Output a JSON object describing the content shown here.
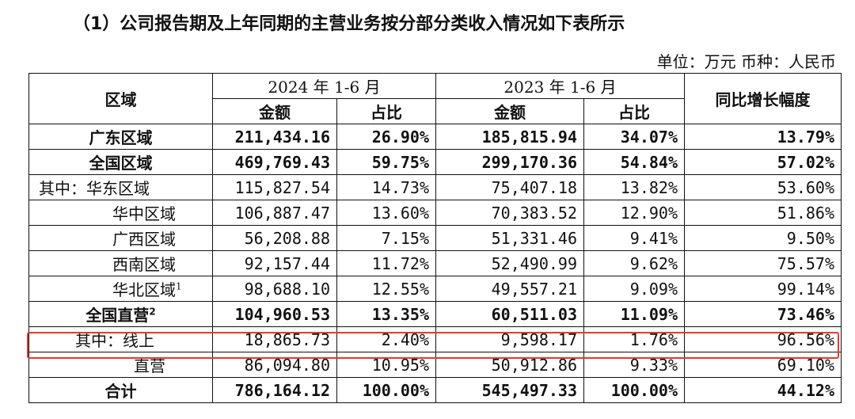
{
  "heading": "（1）公司报告期及上年同期的主营业务按分部分类收入情况如下表所示",
  "unit_note": "单位：万元  币种：人民币",
  "headers": {
    "region": "区域",
    "period_2024": "2024 年 1-6 月",
    "period_2023": "2023 年 1-6 月",
    "amount": "金额",
    "share": "占比",
    "growth": "同比增长幅度"
  },
  "rows": [
    {
      "region": "广东区域",
      "note": "",
      "amt_2024": "211,434.16",
      "pct_2024": "26.90%",
      "amt_2023": "185,815.94",
      "pct_2023": "34.07%",
      "growth": "13.79%"
    },
    {
      "region": "全国区域",
      "note": "",
      "amt_2024": "469,769.43",
      "pct_2024": "59.75%",
      "amt_2023": "299,170.36",
      "pct_2023": "54.84%",
      "growth": "57.02%"
    },
    {
      "region": "其中：华东区域",
      "note": "",
      "amt_2024": "115,827.54",
      "pct_2024": "14.73%",
      "amt_2023": "75,407.18",
      "pct_2023": "13.82%",
      "growth": "53.60%"
    },
    {
      "region": "华中区域",
      "note": "",
      "amt_2024": "106,887.47",
      "pct_2024": "13.60%",
      "amt_2023": "70,383.52",
      "pct_2023": "12.90%",
      "growth": "51.86%"
    },
    {
      "region": "广西区域",
      "note": "",
      "amt_2024": "56,208.88",
      "pct_2024": "7.15%",
      "amt_2023": "51,331.46",
      "pct_2023": "9.41%",
      "growth": "9.50%"
    },
    {
      "region": "西南区域",
      "note": "",
      "amt_2024": "92,157.44",
      "pct_2024": "11.72%",
      "amt_2023": "52,490.99",
      "pct_2023": "9.62%",
      "growth": "75.57%"
    },
    {
      "region": "华北区域",
      "note": "1",
      "amt_2024": "98,688.10",
      "pct_2024": "12.55%",
      "amt_2023": "49,557.21",
      "pct_2023": "9.09%",
      "growth": "99.14%"
    },
    {
      "region": "全国直营",
      "note": "2",
      "amt_2024": "104,960.53",
      "pct_2024": "13.35%",
      "amt_2023": "60,511.03",
      "pct_2023": "11.09%",
      "growth": "73.46%"
    },
    {
      "region": "其中：线上",
      "note": "",
      "amt_2024": "18,865.73",
      "pct_2024": "2.40%",
      "amt_2023": "9,598.17",
      "pct_2023": "1.76%",
      "growth": "96.56%"
    },
    {
      "region": "直营",
      "note": "",
      "amt_2024": "86,094.80",
      "pct_2024": "10.95%",
      "amt_2023": "50,912.86",
      "pct_2023": "9.33%",
      "growth": "69.10%"
    },
    {
      "region": "合计",
      "note": "",
      "amt_2024": "786,164.12",
      "pct_2024": "100.00%",
      "amt_2023": "545,497.33",
      "pct_2023": "100.00%",
      "growth": "44.12%"
    }
  ],
  "highlight_color": "#e23a2e"
}
